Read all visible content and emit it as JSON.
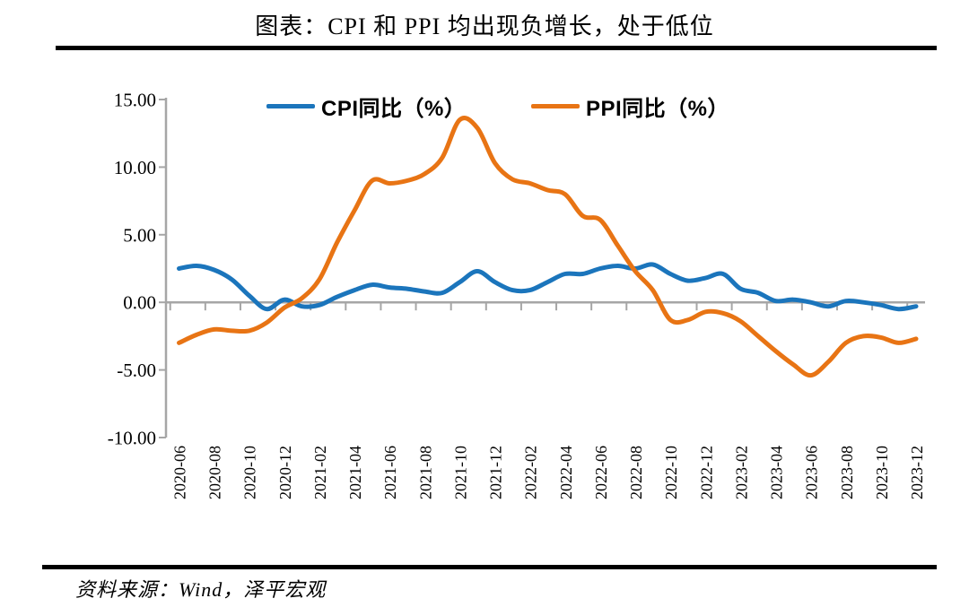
{
  "title": "图表：CPI 和 PPI 均出现负增长，处于低位",
  "source_note": "资料来源：Wind，泽平宏观",
  "colors": {
    "cpi_line": "#1B75BC",
    "ppi_line": "#E87414",
    "axis": "#A6A6A6",
    "text": "#000000",
    "rule": "#000000"
  },
  "legend": {
    "items": [
      {
        "label": "CPI同比（%）"
      },
      {
        "label": "PPI同比（%）"
      }
    ]
  },
  "chart_data": {
    "type": "line",
    "title": "图表：CPI 和 PPI 均出现负增长，处于低位",
    "xlabel": "",
    "ylabel": "",
    "ylim": [
      -10,
      15
    ],
    "yticks": [
      15,
      10,
      5,
      0,
      -5,
      -10
    ],
    "ytick_labels": [
      "15.00",
      "10.00",
      "5.00",
      "0.00",
      "-5.00",
      "-10.00"
    ],
    "grid": false,
    "zero_line": true,
    "legend_position": "top",
    "smooth": true,
    "x": [
      "2020-06",
      "2020-07",
      "2020-08",
      "2020-09",
      "2020-10",
      "2020-11",
      "2020-12",
      "2021-01",
      "2021-02",
      "2021-03",
      "2021-04",
      "2021-05",
      "2021-06",
      "2021-07",
      "2021-08",
      "2021-09",
      "2021-10",
      "2021-11",
      "2021-12",
      "2022-01",
      "2022-02",
      "2022-03",
      "2022-04",
      "2022-05",
      "2022-06",
      "2022-07",
      "2022-08",
      "2022-09",
      "2022-10",
      "2022-11",
      "2022-12",
      "2023-01",
      "2023-02",
      "2023-03",
      "2023-04",
      "2023-05",
      "2023-06",
      "2023-07",
      "2023-08",
      "2023-09",
      "2023-10",
      "2023-11",
      "2023-12"
    ],
    "xtick_labels": [
      "2020-06",
      "2020-08",
      "2020-10",
      "2020-12",
      "2021-02",
      "2021-04",
      "2021-06",
      "2021-08",
      "2021-10",
      "2021-12",
      "2022-02",
      "2022-04",
      "2022-06",
      "2022-08",
      "2022-10",
      "2022-12",
      "2023-02",
      "2023-04",
      "2023-06",
      "2023-08",
      "2023-10",
      "2023-12"
    ],
    "series": [
      {
        "name": "CPI同比（%）",
        "color": "#1B75BC",
        "values": [
          2.5,
          2.7,
          2.4,
          1.7,
          0.5,
          -0.5,
          0.2,
          -0.3,
          -0.2,
          0.4,
          0.9,
          1.3,
          1.1,
          1.0,
          0.8,
          0.7,
          1.5,
          2.3,
          1.5,
          0.9,
          0.9,
          1.5,
          2.1,
          2.1,
          2.5,
          2.7,
          2.5,
          2.8,
          2.1,
          1.6,
          1.8,
          2.1,
          1.0,
          0.7,
          0.1,
          0.2,
          0.0,
          -0.3,
          0.1,
          0.0,
          -0.2,
          -0.5,
          -0.3
        ]
      },
      {
        "name": "PPI同比（%）",
        "color": "#E87414",
        "values": [
          -3.0,
          -2.4,
          -2.0,
          -2.1,
          -2.1,
          -1.5,
          -0.4,
          0.3,
          1.7,
          4.4,
          6.8,
          9.0,
          8.8,
          9.0,
          9.5,
          10.7,
          13.5,
          12.9,
          10.3,
          9.1,
          8.8,
          8.3,
          8.0,
          6.4,
          6.1,
          4.2,
          2.3,
          0.9,
          -1.3,
          -1.3,
          -0.7,
          -0.8,
          -1.4,
          -2.5,
          -3.6,
          -4.6,
          -5.4,
          -4.4,
          -3.0,
          -2.5,
          -2.6,
          -3.0,
          -2.7
        ]
      }
    ]
  }
}
